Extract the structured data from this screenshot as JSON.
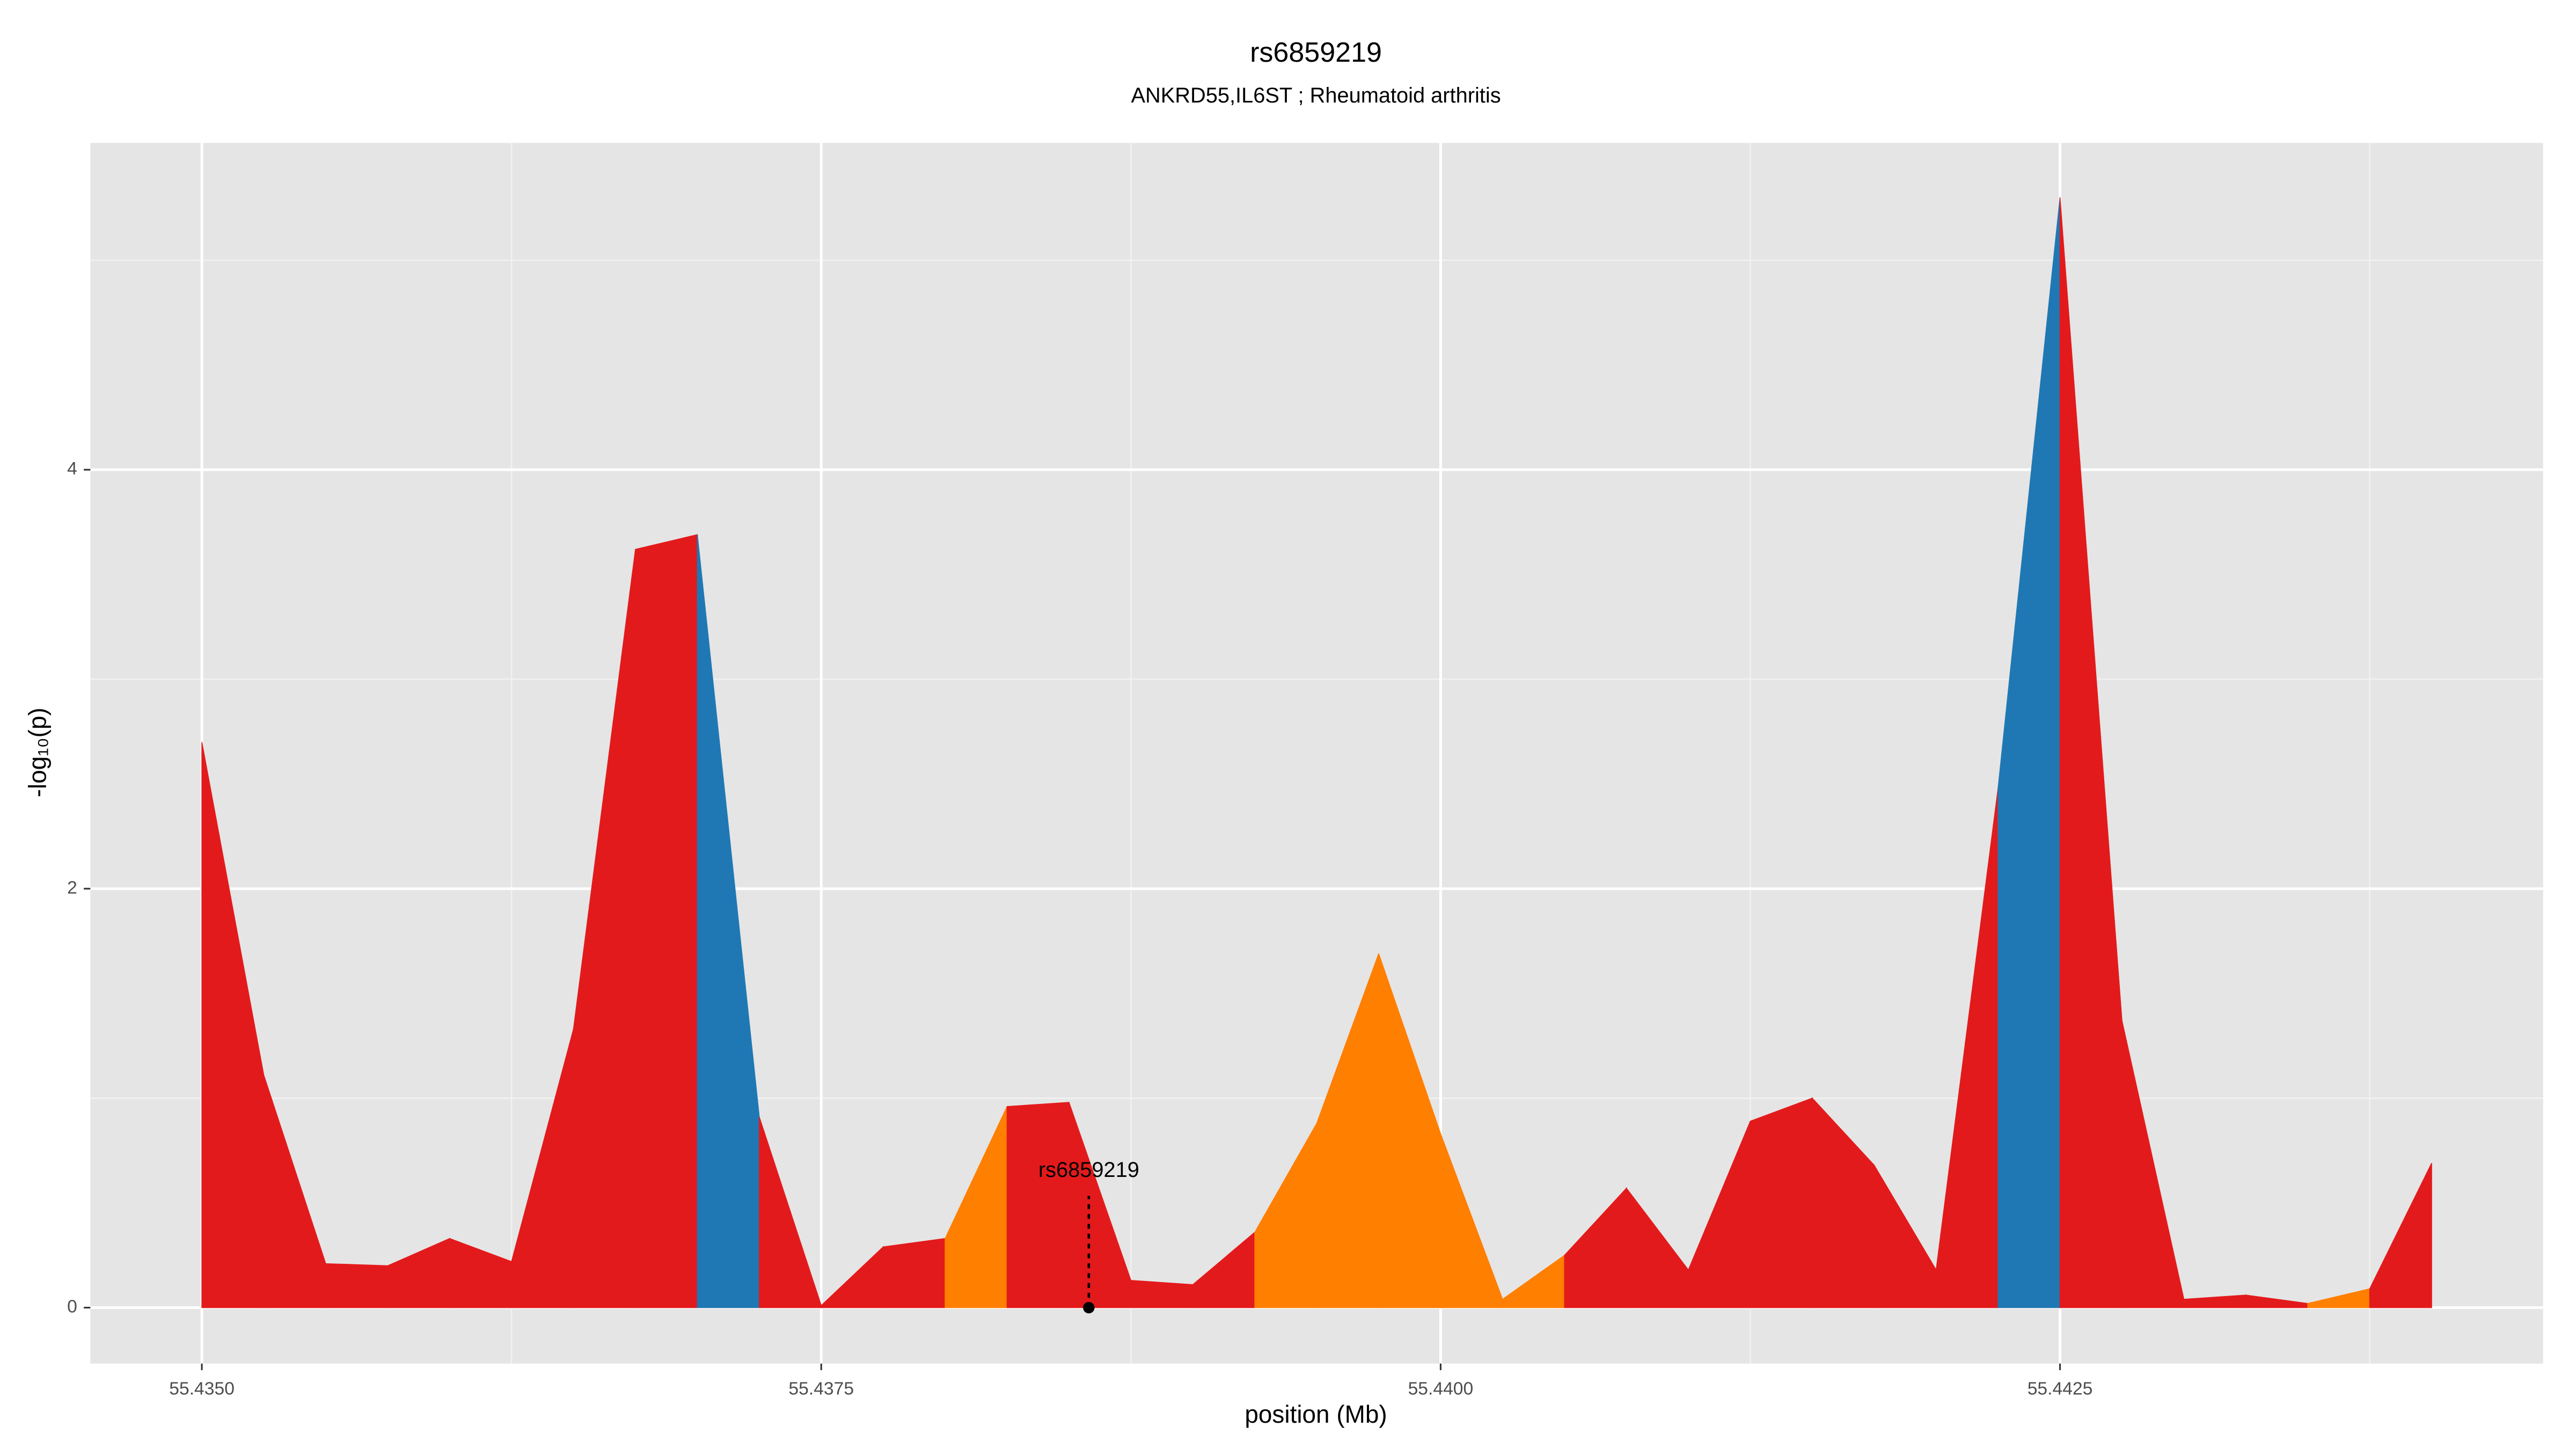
{
  "chart_data": {
    "type": "area",
    "title": "rs6859219",
    "subtitle": "ANKRD55,IL6ST ; Rheumatoid arthritis",
    "xlabel": "position (Mb)",
    "ylabel": "-log₁₀(p)",
    "x": [
      55.435,
      55.43525,
      55.4355,
      55.43575,
      55.436,
      55.43625,
      55.4365,
      55.43675,
      55.437,
      55.43725,
      55.4375,
      55.43775,
      55.438,
      55.43825,
      55.4385,
      55.43875,
      55.439,
      55.43925,
      55.4395,
      55.43975,
      55.44,
      55.44025,
      55.4405,
      55.44075,
      55.441,
      55.44125,
      55.4415,
      55.44175,
      55.442,
      55.44225,
      55.4425,
      55.44275,
      55.443,
      55.44325,
      55.4435,
      55.44375,
      55.444
    ],
    "values": [
      2.7,
      1.11,
      0.21,
      0.2,
      0.33,
      0.22,
      1.33,
      3.62,
      3.69,
      0.91,
      0.01,
      0.29,
      0.33,
      0.96,
      0.98,
      0.13,
      0.11,
      0.36,
      0.88,
      1.69,
      0.83,
      0.04,
      0.25,
      0.57,
      0.18,
      0.89,
      1.0,
      0.68,
      0.18,
      2.48,
      5.3,
      1.37,
      0.04,
      0.06,
      0.02,
      0.09,
      0.69
    ],
    "segment_colors": [
      "#e31a1c",
      "#e31a1c",
      "#e31a1c",
      "#e31a1c",
      "#e31a1c",
      "#e31a1c",
      "#e31a1c",
      "#e31a1c",
      "#1f78b4",
      "#e31a1c",
      "#e31a1c",
      "#e31a1c",
      "#ff7f00",
      "#e31a1c",
      "#e31a1c",
      "#e31a1c",
      "#e31a1c",
      "#ff7f00",
      "#ff7f00",
      "#ff7f00",
      "#ff7f00",
      "#ff7f00",
      "#e31a1c",
      "#e31a1c",
      "#e31a1c",
      "#e31a1c",
      "#e31a1c",
      "#e31a1c",
      "#e31a1c",
      "#1f78b4",
      "#e31a1c",
      "#e31a1c",
      "#e31a1c",
      "#e31a1c",
      "#ff7f00",
      "#e31a1c"
    ],
    "annotation": {
      "text": "rs6859219",
      "x": 55.43858,
      "y": 0
    },
    "xlim": [
      55.43455,
      55.44445
    ],
    "ylim": [
      -0.267,
      5.56
    ],
    "xticks": [
      {
        "value": 55.435,
        "label": "55.4350"
      },
      {
        "value": 55.4375,
        "label": "55.4375"
      },
      {
        "value": 55.44,
        "label": "55.4400"
      },
      {
        "value": 55.4425,
        "label": "55.4425"
      }
    ],
    "yticks": [
      0,
      2,
      4
    ],
    "xminor": [
      55.43625,
      55.43875,
      55.44125,
      55.44375
    ],
    "yminor": [
      1,
      3,
      5
    ],
    "grid": true
  }
}
